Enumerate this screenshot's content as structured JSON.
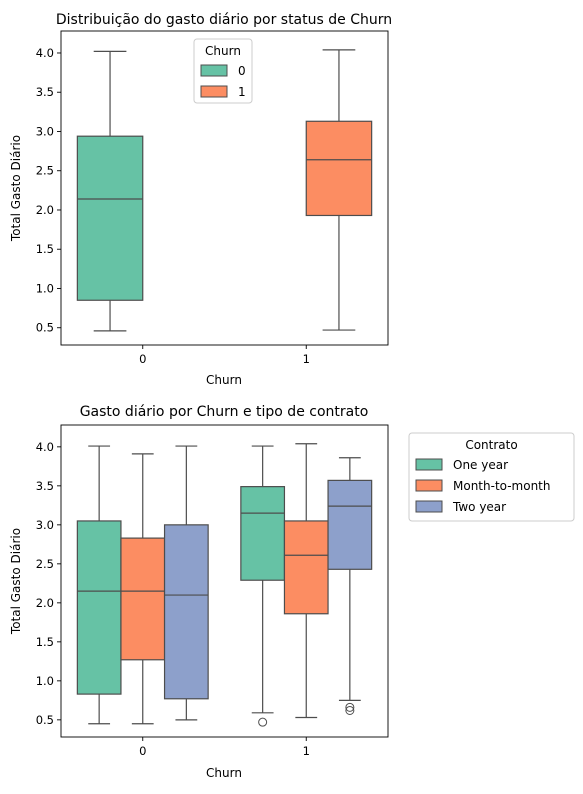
{
  "chart_data": [
    {
      "type": "box",
      "title": "Distribuição do gasto diário por status de Churn",
      "xlabel": "Churn",
      "ylabel": "Total Gasto Diário",
      "categories": [
        "0",
        "1"
      ],
      "ylim": [
        0.28,
        4.28
      ],
      "yticks": [
        0.5,
        1.0,
        1.5,
        2.0,
        2.5,
        3.0,
        3.5,
        4.0
      ],
      "yticklabels": [
        "0.5",
        "1.0",
        "1.5",
        "2.0",
        "2.5",
        "3.0",
        "3.5",
        "4.0"
      ],
      "legend": {
        "title": "Churn",
        "position": "upper center",
        "entries": [
          "0",
          "1"
        ]
      },
      "series": [
        {
          "name": "0",
          "color": "#66c2a5",
          "boxes": [
            {
              "category": "0",
              "whislo": 0.46,
              "q1": 0.85,
              "med": 2.14,
              "q3": 2.94,
              "whishi": 4.02,
              "fliers": []
            }
          ]
        },
        {
          "name": "1",
          "color": "#fc8d62",
          "boxes": [
            {
              "category": "1",
              "whislo": 0.47,
              "q1": 1.93,
              "med": 2.64,
              "q3": 3.13,
              "whishi": 4.04,
              "fliers": []
            }
          ]
        }
      ]
    },
    {
      "type": "box",
      "title": "Gasto diário por Churn e tipo de contrato",
      "xlabel": "Churn",
      "ylabel": "Total Gasto Diário",
      "categories": [
        "0",
        "1"
      ],
      "ylim": [
        0.28,
        4.28
      ],
      "yticks": [
        0.5,
        1.0,
        1.5,
        2.0,
        2.5,
        3.0,
        3.5,
        4.0
      ],
      "yticklabels": [
        "0.5",
        "1.0",
        "1.5",
        "2.0",
        "2.5",
        "3.0",
        "3.5",
        "4.0"
      ],
      "legend": {
        "title": "Contrato",
        "position": "outside upper right",
        "entries": [
          "One year",
          "Month-to-month",
          "Two year"
        ]
      },
      "series": [
        {
          "name": "One year",
          "color": "#66c2a5",
          "boxes": [
            {
              "category": "0",
              "whislo": 0.45,
              "q1": 0.83,
              "med": 2.15,
              "q3": 3.05,
              "whishi": 4.01,
              "fliers": []
            },
            {
              "category": "1",
              "whislo": 0.59,
              "q1": 2.29,
              "med": 3.15,
              "q3": 3.49,
              "whishi": 4.01,
              "fliers": [
                0.47
              ]
            }
          ]
        },
        {
          "name": "Month-to-month",
          "color": "#fc8d62",
          "boxes": [
            {
              "category": "0",
              "whislo": 0.45,
              "q1": 1.27,
              "med": 2.15,
              "q3": 2.83,
              "whishi": 3.91,
              "fliers": []
            },
            {
              "category": "1",
              "whislo": 0.53,
              "q1": 1.86,
              "med": 2.61,
              "q3": 3.05,
              "whishi": 4.04,
              "fliers": []
            }
          ]
        },
        {
          "name": "Two year",
          "color": "#8da0cb",
          "boxes": [
            {
              "category": "0",
              "whislo": 0.5,
              "q1": 0.77,
              "med": 2.1,
              "q3": 3.0,
              "whishi": 4.01,
              "fliers": []
            },
            {
              "category": "1",
              "whislo": 0.75,
              "q1": 2.43,
              "med": 3.24,
              "q3": 3.57,
              "whishi": 3.86,
              "fliers": [
                0.62,
                0.66
              ]
            }
          ]
        }
      ]
    }
  ]
}
